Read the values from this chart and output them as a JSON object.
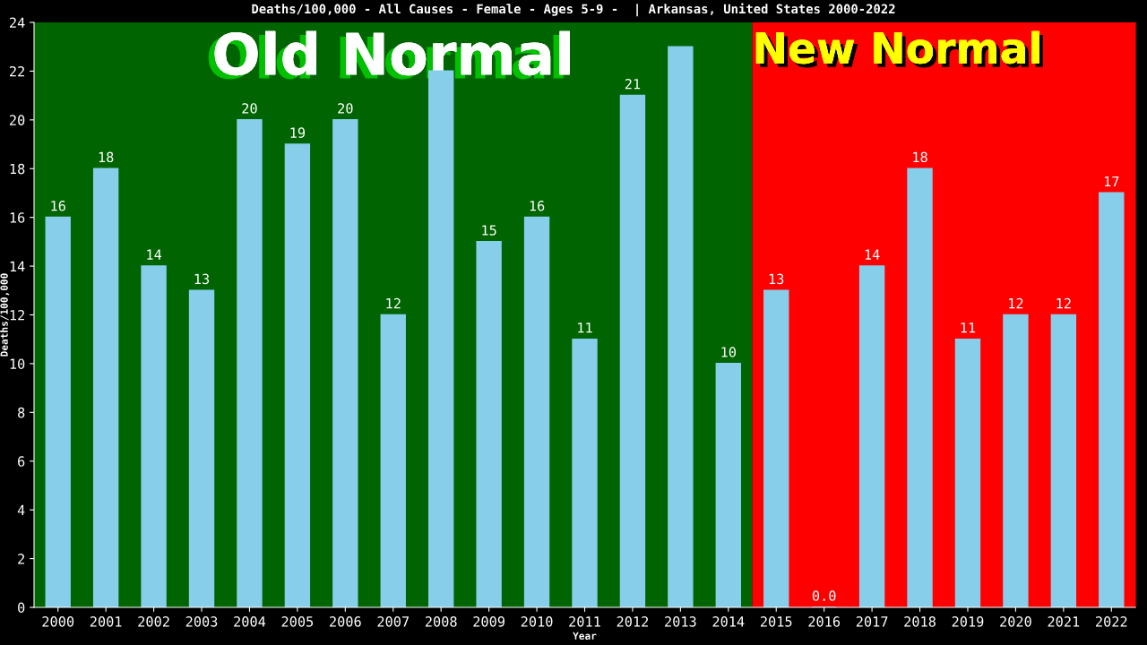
{
  "chart_data": {
    "type": "bar",
    "title": "Deaths/100,000 - All Causes - Female - Ages 5-9 -  | Arkansas, United States 2000-2022",
    "xlabel": "Year",
    "ylabel": "Deaths/100,000",
    "categories": [
      "2000",
      "2001",
      "2002",
      "2003",
      "2004",
      "2005",
      "2006",
      "2007",
      "2008",
      "2009",
      "2010",
      "2011",
      "2012",
      "2013",
      "2014",
      "2015",
      "2016",
      "2017",
      "2018",
      "2019",
      "2020",
      "2021",
      "2022"
    ],
    "values": [
      16,
      18,
      14,
      13,
      20,
      19,
      20,
      12,
      22,
      15,
      16,
      11,
      21,
      23,
      10,
      13,
      0,
      14,
      18,
      11,
      12,
      12,
      17
    ],
    "value_labels": [
      "16",
      "18",
      "14",
      "13",
      "20",
      "19",
      "20",
      "12",
      null,
      "15",
      "16",
      "11",
      "21",
      null,
      "10",
      "13",
      "0.0",
      "14",
      "18",
      "11",
      "12",
      "12",
      "17"
    ],
    "color": "#87ceeb",
    "ylim": [
      0,
      24
    ],
    "yticks": [
      0,
      2,
      4,
      6,
      8,
      10,
      12,
      14,
      16,
      18,
      20,
      22,
      24
    ],
    "bands": [
      {
        "axis": "x",
        "from": "2000",
        "to": "2014",
        "label": "Old Normal",
        "color": "#006400"
      },
      {
        "axis": "x",
        "from": "2015",
        "to": "2022",
        "label": "New Normal",
        "color": "#ff0000"
      }
    ],
    "grid": false,
    "legend": false
  }
}
